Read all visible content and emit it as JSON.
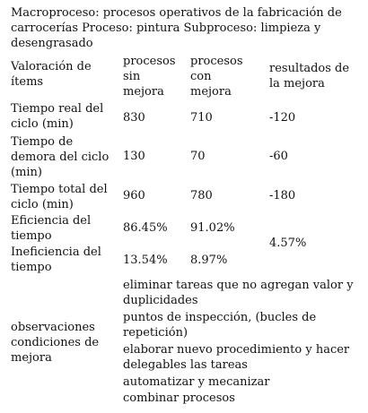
{
  "header": {
    "title": "Macroproceso: procesos operativos de la fabricación de carrocerías Proceso: pintura Subproceso: limpieza y desengrasado"
  },
  "table": {
    "columns": [
      "Valoración de ítems",
      "procesos sin mejora",
      "procesos con mejora",
      "resultados de la mejora"
    ],
    "rows": [
      [
        "Tiempo real del ciclo (min)",
        "830",
        "710",
        "-120"
      ],
      [
        "Tiempo de demora del ciclo (min)",
        "130",
        "70",
        "-60"
      ],
      [
        "Tiempo total del ciclo (min)",
        "960",
        "780",
        "-180"
      ],
      [
        "Eficiencia del tiempo",
        "86.45%",
        "91.02%",
        "4.57%"
      ],
      [
        "Ineficiencia del tiempo",
        "13.54%",
        "8.97%"
      ]
    ]
  },
  "observations": {
    "label": "observaciones condiciones de mejora",
    "items": [
      "eliminar tareas que no agregan valor y duplicidades",
      "puntos de inspección, (bucles de repetición)",
      "elaborar nuevo procedimiento y hacer delegables las tareas",
      "automatizar y mecanizar",
      "combinar procesos"
    ]
  }
}
